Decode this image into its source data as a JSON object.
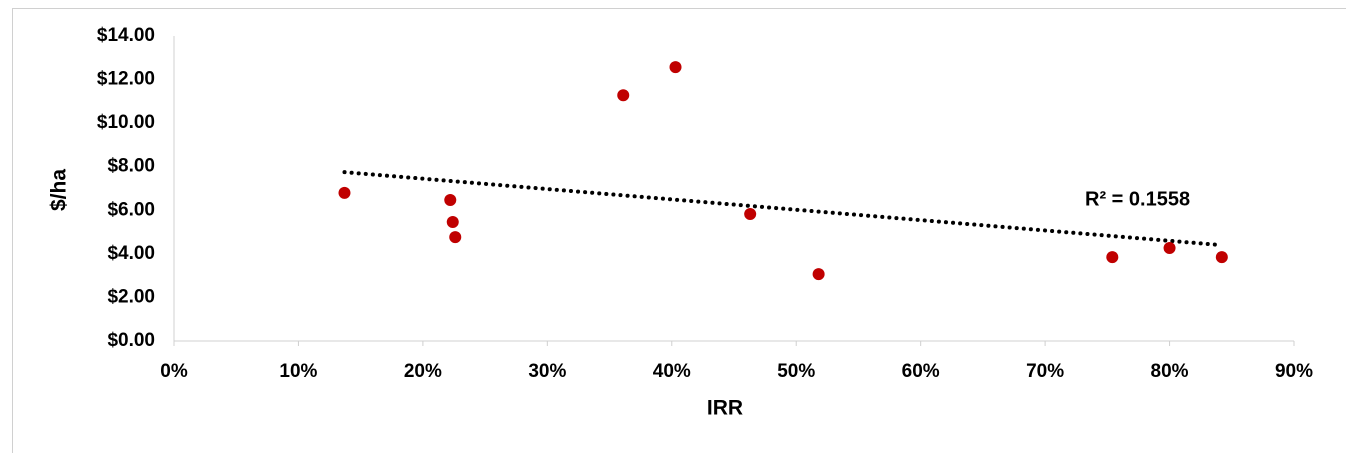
{
  "chart_data": {
    "type": "scatter",
    "x_label": "IRR",
    "y_label": "$/ha",
    "annotation": "R² = 0.1558",
    "x": [
      13.7,
      22.2,
      22.4,
      22.6,
      36.1,
      40.3,
      46.3,
      51.8,
      75.4,
      80.0,
      84.2
    ],
    "values": [
      6.8,
      6.47,
      5.46,
      4.77,
      11.28,
      12.57,
      5.83,
      3.07,
      3.85,
      4.27,
      3.85
    ],
    "color": "#c00000",
    "trendline": {
      "x": [
        13.7,
        84.2
      ],
      "y": [
        7.75,
        4.4
      ],
      "color": "#000000"
    },
    "xlim": [
      0,
      90
    ],
    "xticks": [
      {
        "value": 0,
        "label": "0%"
      },
      {
        "value": 10,
        "label": "10%"
      },
      {
        "value": 20,
        "label": "20%"
      },
      {
        "value": 30,
        "label": "30%"
      },
      {
        "value": 40,
        "label": "40%"
      },
      {
        "value": 50,
        "label": "50%"
      },
      {
        "value": 60,
        "label": "60%"
      },
      {
        "value": 70,
        "label": "70%"
      },
      {
        "value": 80,
        "label": "80%"
      },
      {
        "value": 90,
        "label": "90%"
      }
    ],
    "ylim": [
      0,
      14
    ],
    "yticks": [
      {
        "value": 0,
        "label": "$0.00"
      },
      {
        "value": 2,
        "label": "$2.00"
      },
      {
        "value": 4,
        "label": "$4.00"
      },
      {
        "value": 6,
        "label": "$6.00"
      },
      {
        "value": 8,
        "label": "$8.00"
      },
      {
        "value": 10,
        "label": "$10.00"
      },
      {
        "value": 12,
        "label": "$12.00"
      },
      {
        "value": 14,
        "label": "$14.00"
      }
    ],
    "grid": false
  }
}
